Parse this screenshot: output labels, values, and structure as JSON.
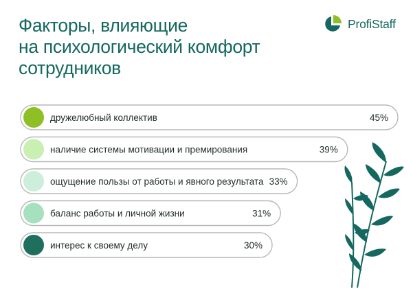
{
  "header": {
    "title_lines": [
      "Факторы, влияющие",
      "на психологический комфорт",
      "сотрудников"
    ],
    "brand": "ProfiStaff"
  },
  "colors": {
    "title": "#14685f",
    "bar_border": "#b8b8b8",
    "text": "#1f2a28"
  },
  "chart_data": {
    "type": "bar",
    "orientation": "horizontal",
    "title": "Факторы, влияющие на психологический комфорт сотрудников",
    "categories": [
      "дружелюбный коллектив",
      "наличие системы мотивации и премирования",
      "ощущение пользы от работы и явного результата",
      "баланс работы и личной жизни",
      "интерес к своему делу"
    ],
    "values": [
      45,
      39,
      33,
      31,
      30
    ],
    "value_labels": [
      "45%",
      "39%",
      "33%",
      "31%",
      "30%"
    ],
    "dot_colors": [
      "#8ec026",
      "#c9efb2",
      "#cdeedb",
      "#a6e1bf",
      "#1f6f5e"
    ],
    "unit": "%"
  }
}
